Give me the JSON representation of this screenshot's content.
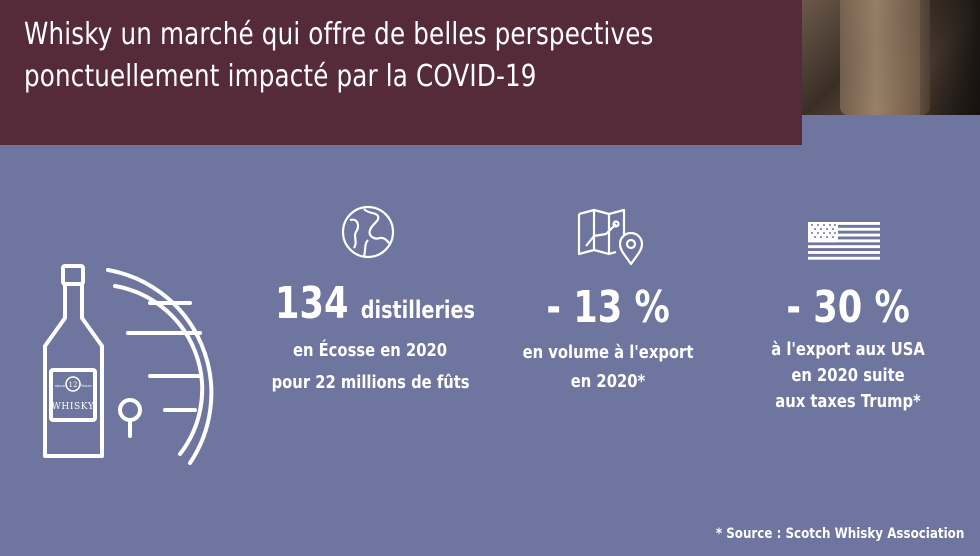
{
  "header": {
    "title_line1": "Whisky un marché qui offre de belles perspectives",
    "title_line2": "ponctuellement impacté par la COVID-19"
  },
  "bottle": {
    "label": "WHISKY",
    "badge": "12",
    "badge_left": "since",
    "badge_right": "Years"
  },
  "stats": [
    {
      "icon": "globe-icon",
      "value": "134",
      "value_suffix": "distilleries",
      "line1": "en Écosse en 2020",
      "line2": "pour 22 millions de fûts",
      "line3": ""
    },
    {
      "icon": "map-route-icon",
      "value": "- 13 %",
      "value_suffix": "",
      "line1": "en volume à l'export",
      "line2": "en 2020*",
      "line3": ""
    },
    {
      "icon": "usa-flag-icon",
      "value": "- 30 %",
      "value_suffix": "",
      "line1": "à l'export aux USA",
      "line2": "en 2020 suite",
      "line3": "aux taxes Trump*"
    }
  ],
  "footer": {
    "source": "* Source : Scotch Whisky Association"
  },
  "colors": {
    "title_band": "#552a39",
    "background": "#6e759f",
    "text": "#ffffff"
  }
}
